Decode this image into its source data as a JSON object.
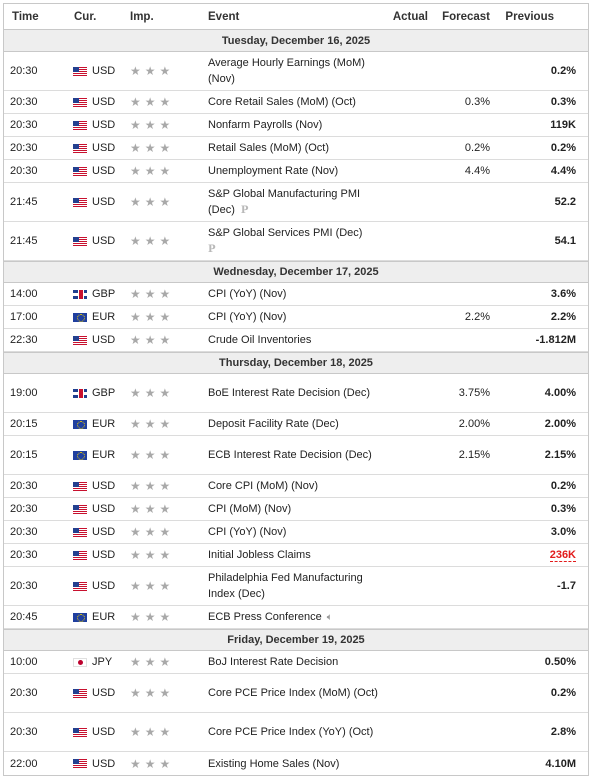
{
  "header": {
    "time": "Time",
    "currency": "Cur.",
    "importance": "Imp.",
    "event": "Event",
    "actual": "Actual",
    "forecast": "Forecast",
    "previous": "Previous"
  },
  "days": [
    {
      "label": "Tuesday, December 16, 2025",
      "events": [
        {
          "time": "20:30",
          "flag": "us",
          "cur": "USD",
          "event": "Average Hourly Earnings (MoM) (Nov)",
          "actual": "",
          "forecast": "",
          "previous": "0.2%"
        },
        {
          "time": "20:30",
          "flag": "us",
          "cur": "USD",
          "event": "Core Retail Sales (MoM) (Oct)",
          "actual": "",
          "forecast": "0.3%",
          "previous": "0.3%"
        },
        {
          "time": "20:30",
          "flag": "us",
          "cur": "USD",
          "event": "Nonfarm Payrolls (Nov)",
          "actual": "",
          "forecast": "",
          "previous": "119K"
        },
        {
          "time": "20:30",
          "flag": "us",
          "cur": "USD",
          "event": "Retail Sales (MoM) (Oct)",
          "actual": "",
          "forecast": "0.2%",
          "previous": "0.2%"
        },
        {
          "time": "20:30",
          "flag": "us",
          "cur": "USD",
          "event": "Unemployment Rate (Nov)",
          "actual": "",
          "forecast": "4.4%",
          "previous": "4.4%"
        },
        {
          "time": "21:45",
          "flag": "us",
          "cur": "USD",
          "event": "S&P Global Manufacturing PMI (Dec)",
          "actual": "",
          "forecast": "",
          "previous": "52.2",
          "prelim": "P"
        },
        {
          "time": "21:45",
          "flag": "us",
          "cur": "USD",
          "event": "S&P Global Services PMI (Dec)",
          "actual": "",
          "forecast": "",
          "previous": "54.1",
          "prelim": "P"
        }
      ]
    },
    {
      "label": "Wednesday, December 17, 2025",
      "events": [
        {
          "time": "14:00",
          "flag": "gb",
          "cur": "GBP",
          "event": "CPI (YoY) (Nov)",
          "actual": "",
          "forecast": "",
          "previous": "3.6%"
        },
        {
          "time": "17:00",
          "flag": "eu",
          "cur": "EUR",
          "event": "CPI (YoY) (Nov)",
          "actual": "",
          "forecast": "2.2%",
          "previous": "2.2%"
        },
        {
          "time": "22:30",
          "flag": "us",
          "cur": "USD",
          "event": "Crude Oil Inventories",
          "actual": "",
          "forecast": "",
          "previous": "-1.812M"
        }
      ]
    },
    {
      "label": "Thursday, December 18, 2025",
      "events": [
        {
          "time": "19:00",
          "flag": "gb",
          "cur": "GBP",
          "event": "BoE Interest Rate Decision (Dec)",
          "actual": "",
          "forecast": "3.75%",
          "previous": "4.00%"
        },
        {
          "time": "20:15",
          "flag": "eu",
          "cur": "EUR",
          "event": "Deposit Facility Rate (Dec)",
          "actual": "",
          "forecast": "2.00%",
          "previous": "2.00%"
        },
        {
          "time": "20:15",
          "flag": "eu",
          "cur": "EUR",
          "event": "ECB Interest Rate Decision (Dec)",
          "actual": "",
          "forecast": "2.15%",
          "previous": "2.15%"
        },
        {
          "time": "20:30",
          "flag": "us",
          "cur": "USD",
          "event": "Core CPI (MoM) (Nov)",
          "actual": "",
          "forecast": "",
          "previous": "0.2%"
        },
        {
          "time": "20:30",
          "flag": "us",
          "cur": "USD",
          "event": "CPI (MoM) (Nov)",
          "actual": "",
          "forecast": "",
          "previous": "0.3%"
        },
        {
          "time": "20:30",
          "flag": "us",
          "cur": "USD",
          "event": "CPI (YoY) (Nov)",
          "actual": "",
          "forecast": "",
          "previous": "3.0%"
        },
        {
          "time": "20:30",
          "flag": "us",
          "cur": "USD",
          "event": "Initial Jobless Claims",
          "actual": "",
          "forecast": "",
          "previous": "236K",
          "previous_color": "red"
        },
        {
          "time": "20:30",
          "flag": "us",
          "cur": "USD",
          "event": "Philadelphia Fed Manufacturing Index (Dec)",
          "actual": "",
          "forecast": "",
          "previous": "-1.7"
        },
        {
          "time": "20:45",
          "flag": "eu",
          "cur": "EUR",
          "event": "ECB Press Conference",
          "actual": "",
          "forecast": "",
          "previous": "",
          "speech": true
        }
      ]
    },
    {
      "label": "Friday, December 19, 2025",
      "events": [
        {
          "time": "10:00",
          "flag": "jp",
          "cur": "JPY",
          "event": "BoJ Interest Rate Decision",
          "actual": "",
          "forecast": "",
          "previous": "0.50%"
        },
        {
          "time": "20:30",
          "flag": "us",
          "cur": "USD",
          "event": "Core PCE Price Index (MoM) (Oct)",
          "actual": "",
          "forecast": "",
          "previous": "0.2%"
        },
        {
          "time": "20:30",
          "flag": "us",
          "cur": "USD",
          "event": "Core PCE Price Index (YoY) (Oct)",
          "actual": "",
          "forecast": "",
          "previous": "2.8%"
        },
        {
          "time": "22:00",
          "flag": "us",
          "cur": "USD",
          "event": "Existing Home Sales (Nov)",
          "actual": "",
          "forecast": "",
          "previous": "4.10M"
        }
      ]
    }
  ],
  "colors": {
    "star": "#a9a9a9",
    "day_bg": "#eeeeee",
    "worse_than_expected": "#e21b1b"
  },
  "icons": {
    "importance": "star-icon",
    "preliminary": "preliminary-icon",
    "speech": "speaker-icon"
  }
}
